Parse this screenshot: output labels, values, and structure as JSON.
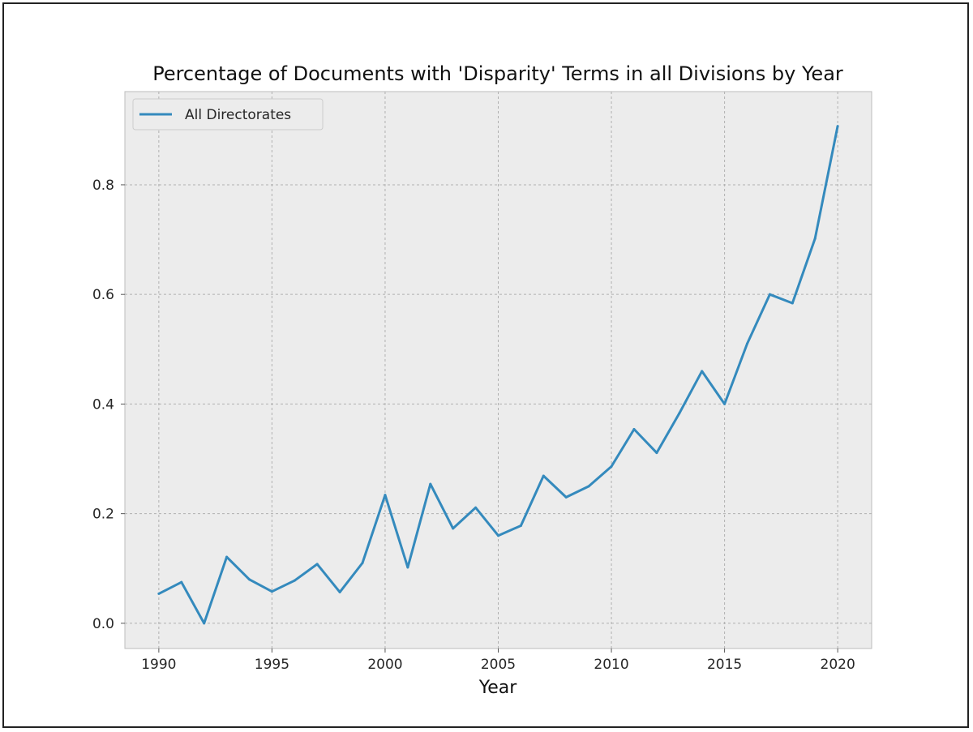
{
  "chart_data": {
    "type": "line",
    "title": "Percentage of Documents with 'Disparity' Terms in all Divisions by Year",
    "xlabel": "Year",
    "ylabel": "",
    "xlim": [
      1988.5,
      2021.5
    ],
    "ylim": [
      -0.046,
      0.97
    ],
    "x_ticks": [
      1990,
      1995,
      2000,
      2005,
      2010,
      2015,
      2020
    ],
    "y_ticks": [
      0.0,
      0.2,
      0.4,
      0.6,
      0.8
    ],
    "y_tick_labels": [
      "0.0",
      "0.2",
      "0.4",
      "0.6",
      "0.8"
    ],
    "grid": true,
    "legend_position": "top-left",
    "series": [
      {
        "name": "All Directorates",
        "color": "#348ABD",
        "x": [
          1990,
          1991,
          1992,
          1993,
          1994,
          1995,
          1996,
          1997,
          1998,
          1999,
          2000,
          2001,
          2002,
          2003,
          2004,
          2005,
          2006,
          2007,
          2008,
          2009,
          2010,
          2011,
          2012,
          2013,
          2014,
          2015,
          2016,
          2017,
          2018,
          2019,
          2020
        ],
        "y": [
          0.054,
          0.075,
          0.0,
          0.121,
          0.08,
          0.058,
          0.078,
          0.108,
          0.057,
          0.11,
          0.234,
          0.102,
          0.254,
          0.173,
          0.211,
          0.16,
          0.178,
          0.269,
          0.23,
          0.25,
          0.286,
          0.354,
          0.311,
          0.383,
          0.46,
          0.4,
          0.51,
          0.6,
          0.584,
          0.702,
          0.907
        ]
      }
    ]
  }
}
